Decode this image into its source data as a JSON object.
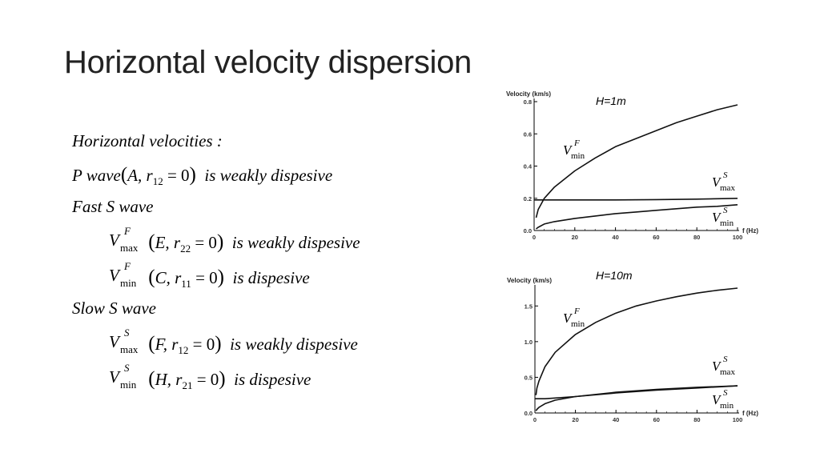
{
  "slide": {
    "title": "Horizontal velocity dispersion"
  },
  "text": {
    "heading": "Horizontal velocities :",
    "p_wave": {
      "label": "P  wave",
      "modulus": "A",
      "r": "r",
      "r_sub": "12",
      "eq": " = 0",
      "desc": "is  weakly  dispesive"
    },
    "fast_s": "Fast  S  wave",
    "slow_s": "Slow  S  wave",
    "rows": [
      {
        "v": "V",
        "sup": "F",
        "sub": "max",
        "modulus": "E",
        "r": "r",
        "r_sub": "22",
        "eq": " = 0",
        "desc": "is  weakly  dispesive"
      },
      {
        "v": "V",
        "sup": "F",
        "sub": "min",
        "modulus": "C",
        "r": "r",
        "r_sub": "11",
        "eq": " = 0",
        "desc": "is  dispesive"
      },
      {
        "v": "V",
        "sup": "S",
        "sub": "max",
        "modulus": "F",
        "r": "r",
        "r_sub": "12",
        "eq": " = 0",
        "desc": "is  weakly  dispesive"
      },
      {
        "v": "V",
        "sup": "S",
        "sub": "min",
        "modulus": "H",
        "r": "r",
        "r_sub": "21",
        "eq": " = 0",
        "desc": "is  dispesive"
      }
    ]
  },
  "chart_data": [
    {
      "type": "line",
      "panel_label": "H=1m",
      "ylabel": "Velocity (km/s)",
      "xlabel": "f (Hz)",
      "xlim": [
        0,
        100
      ],
      "ylim": [
        0,
        0.8
      ],
      "xticks": [
        "0",
        "20",
        "40",
        "60",
        "80",
        "100"
      ],
      "yticks": [
        "0.0",
        "0.2",
        "0.4",
        "0.6",
        "0.8"
      ],
      "grid": false,
      "series": [
        {
          "x": [
            1,
            2,
            5,
            10,
            20,
            30,
            40,
            50,
            60,
            70,
            80,
            90,
            100
          ],
          "y": [
            0.08,
            0.13,
            0.2,
            0.27,
            0.37,
            0.45,
            0.52,
            0.57,
            0.62,
            0.67,
            0.71,
            0.75,
            0.78
          ]
        },
        {
          "x": [
            0,
            20,
            40,
            60,
            80,
            100
          ],
          "y": [
            0.19,
            0.19,
            0.19,
            0.192,
            0.195,
            0.2
          ]
        },
        {
          "x": [
            1,
            2,
            5,
            10,
            20,
            30,
            40,
            50,
            60,
            70,
            80,
            90,
            100
          ],
          "y": [
            0.01,
            0.02,
            0.04,
            0.055,
            0.075,
            0.09,
            0.105,
            0.115,
            0.125,
            0.135,
            0.145,
            0.15,
            0.16
          ]
        }
      ],
      "curve_labels": [
        {
          "v": "V",
          "sup": "F",
          "sub": "min"
        },
        {
          "v": "V",
          "sup": "S",
          "sub": "max"
        },
        {
          "v": "V",
          "sup": "S",
          "sub": "min"
        }
      ]
    },
    {
      "type": "line",
      "panel_label": "H=10m",
      "ylabel": "Velocity (km/s)",
      "xlabel": "f (Hz)",
      "xlim": [
        0,
        100
      ],
      "ylim": [
        0,
        1.75
      ],
      "xticks": [
        "0",
        "20",
        "40",
        "60",
        "80",
        "100"
      ],
      "yticks": [
        "0.0",
        "0.5",
        "1.0",
        "1.5"
      ],
      "grid": false,
      "series": [
        {
          "x": [
            0.5,
            1,
            2,
            5,
            10,
            20,
            30,
            40,
            50,
            60,
            70,
            80,
            90,
            100
          ],
          "y": [
            0.25,
            0.35,
            0.45,
            0.65,
            0.85,
            1.1,
            1.27,
            1.4,
            1.5,
            1.57,
            1.63,
            1.68,
            1.72,
            1.75
          ]
        },
        {
          "x": [
            0,
            5,
            10,
            20,
            40,
            60,
            80,
            100
          ],
          "y": [
            0.2,
            0.2,
            0.21,
            0.23,
            0.28,
            0.32,
            0.35,
            0.38
          ]
        },
        {
          "x": [
            0.5,
            1,
            2,
            5,
            10,
            20,
            40,
            60,
            80,
            100
          ],
          "y": [
            0.03,
            0.05,
            0.08,
            0.13,
            0.18,
            0.23,
            0.29,
            0.33,
            0.36,
            0.38
          ]
        }
      ],
      "curve_labels": [
        {
          "v": "V",
          "sup": "F",
          "sub": "min"
        },
        {
          "v": "V",
          "sup": "S",
          "sub": "max"
        },
        {
          "v": "V",
          "sup": "S",
          "sub": "min"
        }
      ]
    }
  ]
}
